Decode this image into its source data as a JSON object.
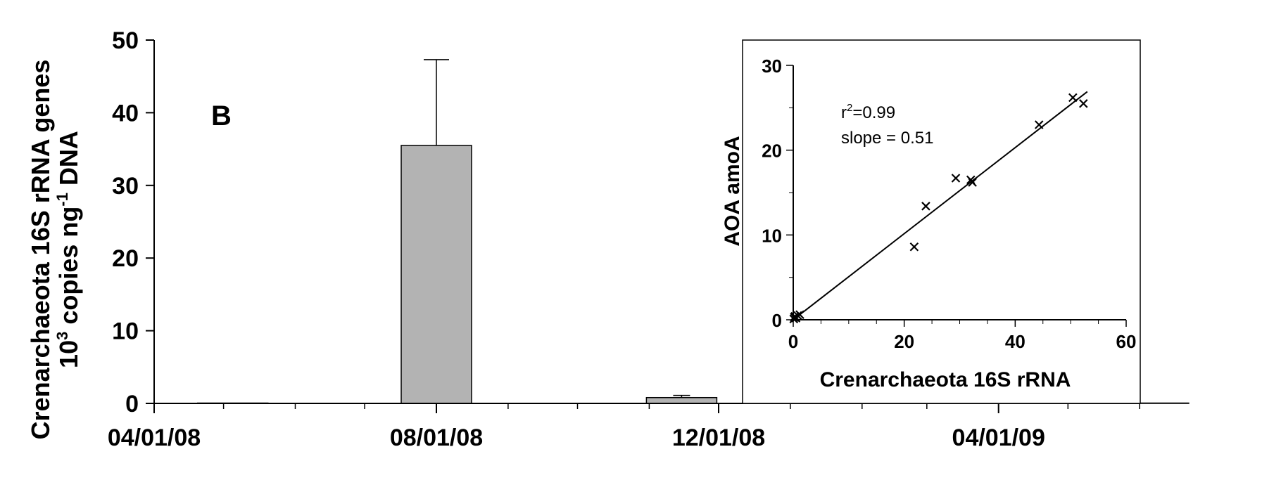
{
  "chart_data": [
    {
      "type": "bar",
      "panel_label": "B",
      "ylabel_line1": "Crenarchaeota 16S rRNA genes",
      "ylabel_line2_prefix": "10",
      "ylabel_line2_sup1": "3",
      "ylabel_line2_mid": " copies ng",
      "ylabel_line2_sup2": "-1",
      "ylabel_line2_suffix": " DNA",
      "xlabel": "",
      "ylim": [
        0,
        50
      ],
      "yticks": [
        "0",
        "10",
        "20",
        "30",
        "40",
        "50"
      ],
      "x_range": [
        "2008-04-01",
        "2009-06-15"
      ],
      "x_tick_labels": [
        {
          "date": "2008-04-01",
          "label": "04/01/08"
        },
        {
          "date": "2008-08-01",
          "label": "08/01/08"
        },
        {
          "date": "2008-12-01",
          "label": "12/01/08"
        },
        {
          "date": "2009-04-01",
          "label": "04/01/09"
        }
      ],
      "bar_color": "#b3b3b3",
      "bars": [
        {
          "date": "2008-05-05",
          "value": 0,
          "error": 0
        },
        {
          "date": "2008-08-01",
          "value": 35.5,
          "error": 11.8
        },
        {
          "date": "2008-11-15",
          "value": 0.8,
          "error": 0.3
        },
        {
          "date": "2009-06-07",
          "value": 0,
          "error": 0
        }
      ]
    },
    {
      "type": "scatter",
      "xlabel": "Crenarchaeota 16S rRNA",
      "ylabel": "AOA amoA",
      "xlim": [
        0,
        60
      ],
      "ylim": [
        0,
        30
      ],
      "xticks": [
        "0",
        "20",
        "40",
        "60"
      ],
      "yticks": [
        "0",
        "10",
        "20",
        "30"
      ],
      "marker": "x",
      "annotation_r2_prefix": "r",
      "annotation_r2_sup": "2",
      "annotation_r2_value": "=0.99",
      "annotation_slope": "slope = 0.51",
      "fit_line": {
        "x": [
          0,
          53
        ],
        "y": [
          0,
          26.9
        ]
      },
      "points": [
        {
          "x": 0.1,
          "y": 0.1
        },
        {
          "x": 0.3,
          "y": 0.4
        },
        {
          "x": 0.5,
          "y": 0.2
        },
        {
          "x": 0.8,
          "y": 0.5
        },
        {
          "x": 1.2,
          "y": 0.6
        },
        {
          "x": 0.2,
          "y": 0.3
        },
        {
          "x": 21.8,
          "y": 8.6
        },
        {
          "x": 23.9,
          "y": 13.4
        },
        {
          "x": 29.3,
          "y": 16.7
        },
        {
          "x": 32.0,
          "y": 16.5
        },
        {
          "x": 32.3,
          "y": 16.2
        },
        {
          "x": 44.3,
          "y": 23.0
        },
        {
          "x": 50.4,
          "y": 26.2
        },
        {
          "x": 52.3,
          "y": 25.5
        }
      ]
    }
  ]
}
